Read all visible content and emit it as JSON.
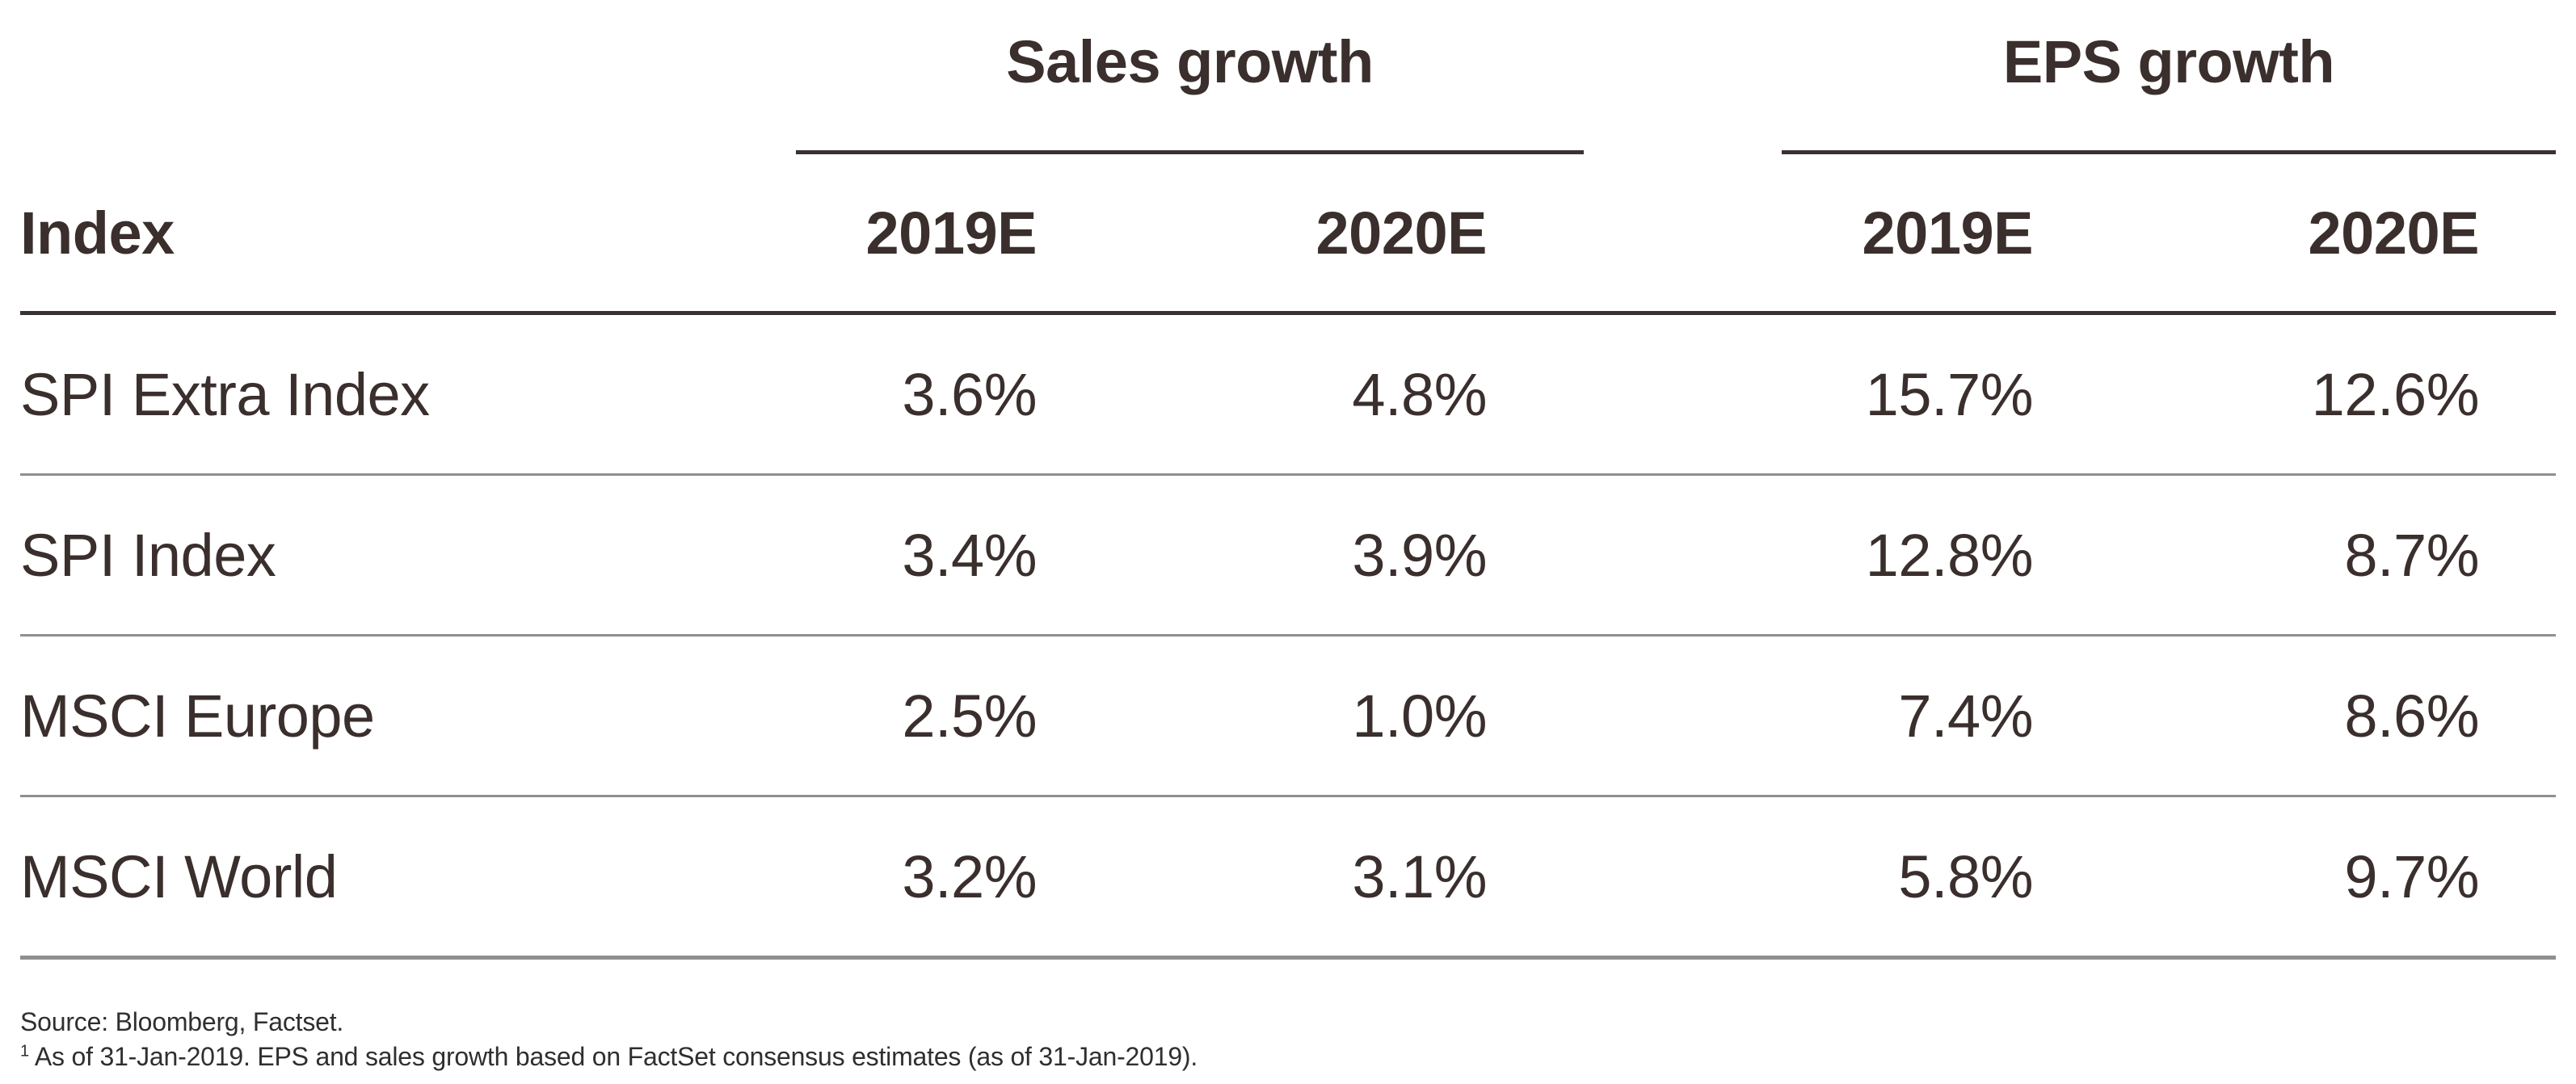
{
  "table": {
    "index_header": "Index",
    "groups": [
      {
        "label": "Sales growth",
        "columns": [
          "2019E",
          "2020E"
        ]
      },
      {
        "label": "EPS growth",
        "columns": [
          "2019E",
          "2020E"
        ]
      }
    ],
    "rows": [
      {
        "label": "SPI Extra Index",
        "values": [
          "3.6%",
          "4.8%",
          "15.7%",
          "12.6%"
        ]
      },
      {
        "label": "SPI Index",
        "values": [
          "3.4%",
          "3.9%",
          "12.8%",
          "8.7%"
        ]
      },
      {
        "label": "MSCI Europe",
        "values": [
          "2.5%",
          "1.0%",
          "7.4%",
          "8.6%"
        ]
      },
      {
        "label": "MSCI World",
        "values": [
          "3.2%",
          "3.1%",
          "5.8%",
          "9.7%"
        ]
      }
    ]
  },
  "footer": {
    "source": "Source: Bloomberg, Factset.",
    "footnote_marker": "1",
    "footnote_text": " As of 31-Jan-2019. EPS and sales growth based on FactSet consensus estimates (as of 31-Jan-2019)."
  },
  "colors": {
    "text": "#3a2f2d",
    "dark_rule": "#3a3133",
    "gray_rule": "#8f8f8f",
    "background": "#ffffff"
  },
  "chart_data": {
    "type": "table",
    "title": "",
    "row_header": "Index",
    "column_groups": [
      "Sales growth",
      "EPS growth"
    ],
    "columns": [
      "Sales growth 2019E",
      "Sales growth 2020E",
      "EPS growth 2019E",
      "EPS growth 2020E"
    ],
    "rows": [
      {
        "index": "SPI Extra Index",
        "values_pct": [
          3.6,
          4.8,
          15.7,
          12.6
        ]
      },
      {
        "index": "SPI Index",
        "values_pct": [
          3.4,
          3.9,
          12.8,
          8.7
        ]
      },
      {
        "index": "MSCI Europe",
        "values_pct": [
          2.5,
          1.0,
          7.4,
          8.6
        ]
      },
      {
        "index": "MSCI World",
        "values_pct": [
          3.2,
          3.1,
          5.8,
          9.7
        ]
      }
    ],
    "notes": [
      "Source: Bloomberg, Factset.",
      "1 As of 31-Jan-2019. EPS and sales growth based on FactSet consensus estimates (as of 31-Jan-2019)."
    ],
    "layout": {
      "value_alignment": "right",
      "group_rules": true,
      "gridlines": "horizontal-only"
    }
  }
}
